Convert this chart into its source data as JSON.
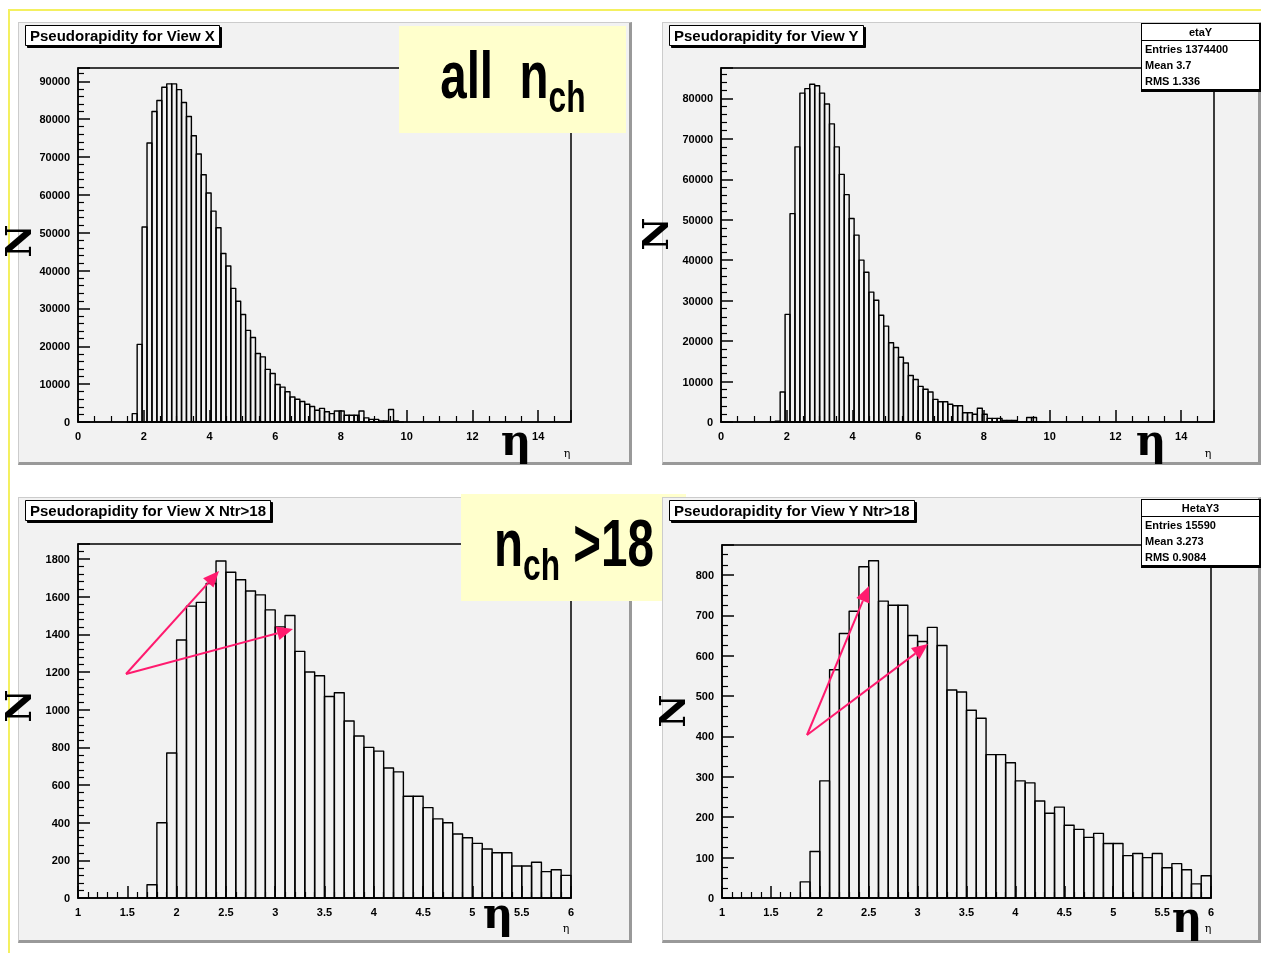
{
  "chart_data": [
    {
      "type": "histogram",
      "title": "Pseudorapidity for View X",
      "subtitle": "all  n$_{ch}$",
      "xlabel": "η",
      "ylabel": "N",
      "color": "#000000",
      "bins": [
        1.5,
        1.65,
        1.8,
        1.95,
        2.1,
        2.25,
        2.4,
        2.55,
        2.7,
        2.85,
        3,
        3.15,
        3.3,
        3.45,
        3.6,
        3.75,
        3.9,
        4.05,
        4.2,
        4.35,
        4.5,
        4.65,
        4.8,
        4.95,
        5.1,
        5.25,
        5.4,
        5.55,
        5.7,
        5.85,
        6,
        6.15,
        6.3,
        6.45,
        6.6,
        6.75,
        6.9,
        7.05,
        7.2,
        7.35,
        7.5,
        7.65,
        7.8,
        7.95,
        8.1,
        8.25,
        8.4,
        8.55,
        8.7,
        8.85,
        9,
        9.15,
        9.3,
        9.45,
        9.6,
        9.75,
        9.9
      ],
      "values": [
        0,
        2200,
        20500,
        51500,
        73700,
        82000,
        84900,
        88400,
        89300,
        89300,
        87800,
        84400,
        80700,
        75600,
        70800,
        65300,
        60500,
        55700,
        51300,
        44500,
        41200,
        35300,
        31900,
        28400,
        24200,
        22300,
        18100,
        17200,
        13900,
        12800,
        9900,
        9200,
        8000,
        6600,
        6000,
        5400,
        4700,
        4100,
        3100,
        3600,
        2700,
        2200,
        2900,
        2900,
        1800,
        1800,
        1800,
        2900,
        1100,
        700,
        700,
        300,
        300,
        3300,
        300,
        0
      ],
      "xlim": [
        0,
        15
      ],
      "xticks": [
        0,
        2,
        4,
        6,
        8,
        10,
        12,
        14
      ],
      "ylim": [
        0,
        93500
      ],
      "yticks": [
        0,
        10000,
        20000,
        30000,
        40000,
        50000,
        60000,
        70000,
        80000,
        90000
      ]
    },
    {
      "type": "histogram",
      "title": "Pseudorapidity for View Y",
      "xlabel": "η",
      "ylabel": "N",
      "color": "#000000",
      "annotations": [
        "etaY",
        "Entries 1374400",
        "Mean 3.7",
        "RMS 1.336"
      ],
      "bins": [
        1.5,
        1.65,
        1.8,
        1.95,
        2.1,
        2.25,
        2.4,
        2.55,
        2.7,
        2.85,
        3,
        3.15,
        3.3,
        3.45,
        3.6,
        3.75,
        3.9,
        4.05,
        4.2,
        4.35,
        4.5,
        4.65,
        4.8,
        4.95,
        5.1,
        5.25,
        5.4,
        5.55,
        5.7,
        5.85,
        6,
        6.15,
        6.3,
        6.45,
        6.6,
        6.75,
        6.9,
        7.05,
        7.2,
        7.35,
        7.5,
        7.65,
        7.8,
        7.95,
        8.1,
        8.25,
        8.4,
        8.55,
        8.7,
        8.85,
        9,
        9.15,
        9.3,
        9.45,
        9.6,
        9.75,
        9.9
      ],
      "values": [
        0,
        200,
        7400,
        26600,
        51500,
        68000,
        81300,
        82400,
        83500,
        83100,
        81300,
        78600,
        73700,
        68000,
        61200,
        56200,
        50300,
        46200,
        40000,
        37000,
        32100,
        30100,
        26400,
        23700,
        19600,
        18400,
        16000,
        14600,
        11500,
        10500,
        8800,
        8100,
        7400,
        5600,
        5000,
        5000,
        4400,
        4000,
        4000,
        2300,
        2300,
        1900,
        3400,
        1900,
        900,
        900,
        900,
        400,
        400,
        400,
        100,
        100,
        1100,
        1100,
        100,
        0
      ],
      "xlim": [
        0,
        15
      ],
      "xticks": [
        0,
        2,
        4,
        6,
        8,
        10,
        12,
        14
      ],
      "ylim": [
        0,
        87500
      ],
      "yticks": [
        0,
        10000,
        20000,
        30000,
        40000,
        50000,
        60000,
        70000,
        80000
      ]
    },
    {
      "type": "histogram",
      "title": "Pseudorapidity for View X Ntr>18",
      "subtitle": "n$_{ch}$ >18",
      "xlabel": "η",
      "ylabel": "N",
      "color": "#000000",
      "bins": [
        1.6,
        1.7,
        1.8,
        1.9,
        2,
        2.1,
        2.2,
        2.3,
        2.4,
        2.5,
        2.6,
        2.7,
        2.8,
        2.9,
        3,
        3.1,
        3.2,
        3.3,
        3.4,
        3.5,
        3.6,
        3.7,
        3.8,
        3.9,
        4,
        4.1,
        4.2,
        4.3,
        4.4,
        4.5,
        4.6,
        4.7,
        4.8,
        4.9,
        5,
        5.1,
        5.2,
        5.3,
        5.4,
        5.5,
        5.6,
        5.7,
        5.8,
        5.9,
        6
      ],
      "values": [
        0,
        70,
        400,
        770,
        1370,
        1550,
        1570,
        1670,
        1790,
        1730,
        1690,
        1630,
        1610,
        1530,
        1440,
        1500,
        1310,
        1200,
        1180,
        1070,
        1090,
        940,
        860,
        800,
        780,
        690,
        670,
        540,
        540,
        480,
        420,
        400,
        340,
        320,
        290,
        260,
        240,
        240,
        170,
        170,
        190,
        140,
        150,
        120
      ],
      "xlim": [
        1,
        6
      ],
      "xticks": [
        1,
        1.5,
        2,
        2.5,
        3,
        3.5,
        4,
        4.5,
        5,
        5.5,
        6
      ],
      "ylim": [
        0,
        1880
      ],
      "yticks": [
        0,
        200,
        400,
        600,
        800,
        1000,
        1200,
        1400,
        1600,
        1800
      ]
    },
    {
      "type": "histogram",
      "title": "Pseudorapidity for View Y Ntr>18",
      "xlabel": "η",
      "ylabel": "N",
      "color": "#000000",
      "annotations": [
        "HetaY3",
        "Entries 15590",
        "Mean 3.273",
        "RMS 0.9084"
      ],
      "bins": [
        1.7,
        1.8,
        1.9,
        2,
        2.1,
        2.2,
        2.3,
        2.4,
        2.5,
        2.6,
        2.7,
        2.8,
        2.9,
        3,
        3.1,
        3.2,
        3.3,
        3.4,
        3.5,
        3.6,
        3.7,
        3.8,
        3.9,
        4,
        4.1,
        4.2,
        4.3,
        4.4,
        4.5,
        4.6,
        4.7,
        4.8,
        4.9,
        5,
        5.1,
        5.2,
        5.3,
        5.4,
        5.5,
        5.6,
        5.7,
        5.8,
        5.9,
        6
      ],
      "values": [
        0,
        40,
        115,
        290,
        565,
        655,
        710,
        820,
        835,
        735,
        725,
        725,
        650,
        635,
        670,
        625,
        515,
        510,
        465,
        445,
        355,
        355,
        335,
        290,
        285,
        240,
        210,
        225,
        180,
        170,
        150,
        160,
        135,
        135,
        105,
        110,
        100,
        110,
        75,
        85,
        70,
        35,
        55
      ],
      "xlim": [
        1,
        6
      ],
      "xticks": [
        1,
        1.5,
        2,
        2.5,
        3,
        3.5,
        4,
        4.5,
        5,
        5.5,
        6
      ],
      "ylim": [
        0,
        874
      ],
      "yticks": [
        0,
        100,
        200,
        300,
        400,
        500,
        600,
        700,
        800
      ]
    }
  ]
}
